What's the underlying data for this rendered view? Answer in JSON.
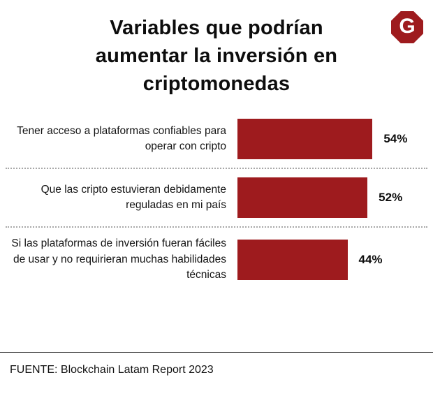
{
  "header": {
    "title": "Variables que podrían aumentar la inversión en criptomonedas"
  },
  "logo": {
    "letter": "G",
    "color": "#9e1b1e"
  },
  "chart_data": {
    "type": "bar",
    "orientation": "horizontal",
    "title": "Variables que podrían aumentar la inversión en criptomonedas",
    "categories": [
      "Tener acceso a plataformas confiables para operar con cripto",
      "Que las cripto estuvieran debidamente reguladas en mi país",
      "Si las plataformas de inversión fueran fáciles de usar y no requirieran muchas habilidades técnicas"
    ],
    "values": [
      54,
      52,
      44
    ],
    "value_labels": [
      "54%",
      "52%",
      "44%"
    ],
    "unit": "%",
    "xlim": [
      0,
      60
    ],
    "bar_color": "#9e1b1e",
    "grid": false,
    "legend": false
  },
  "footer": {
    "source": "FUENTE: Blockchain Latam Report 2023"
  }
}
